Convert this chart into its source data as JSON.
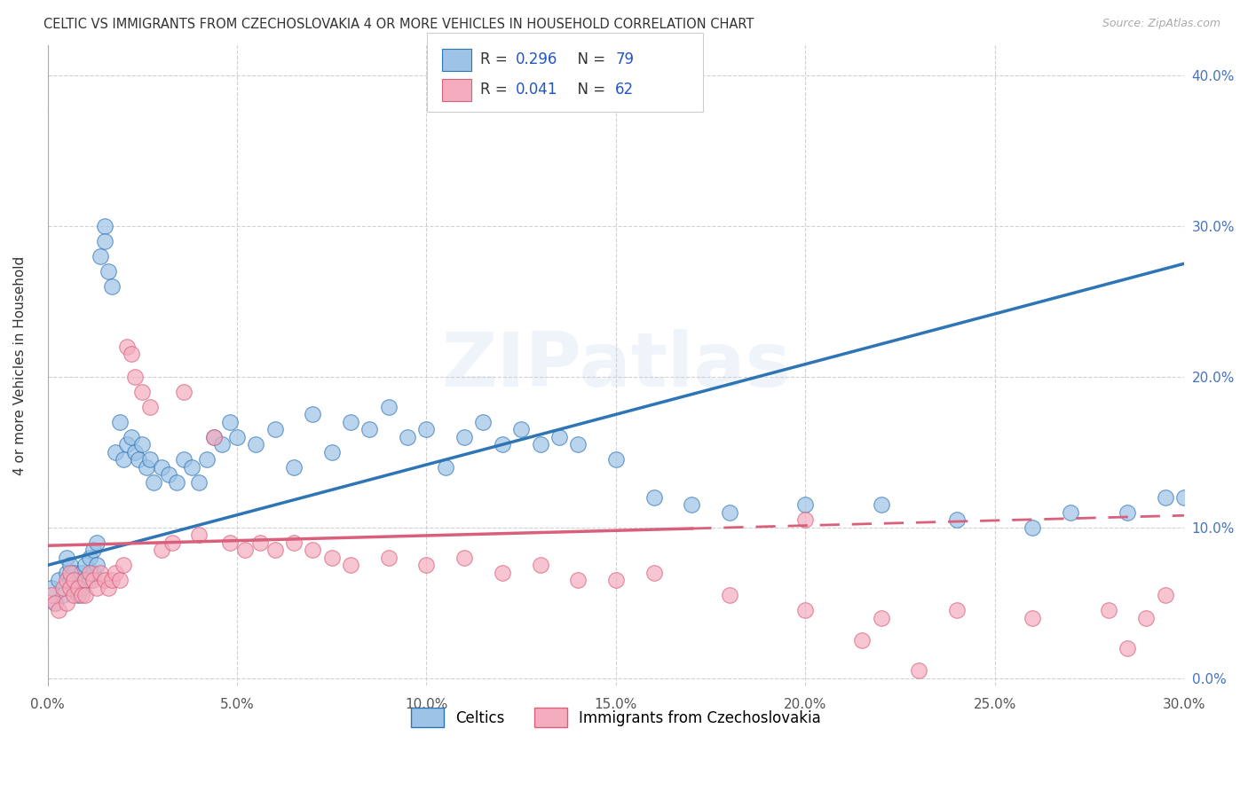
{
  "title": "CELTIC VS IMMIGRANTS FROM CZECHOSLOVAKIA 4 OR MORE VEHICLES IN HOUSEHOLD CORRELATION CHART",
  "source": "Source: ZipAtlas.com",
  "ylabel": "4 or more Vehicles in Household",
  "xlim": [
    0.0,
    0.3
  ],
  "ylim": [
    -0.005,
    0.42
  ],
  "xticks": [
    0.0,
    0.05,
    0.1,
    0.15,
    0.2,
    0.25,
    0.3
  ],
  "yticks": [
    0.0,
    0.1,
    0.2,
    0.3,
    0.4
  ],
  "xticklabels": [
    "0.0%",
    "5.0%",
    "10.0%",
    "15.0%",
    "20.0%",
    "25.0%",
    "30.0%"
  ],
  "yticklabels": [
    "0.0%",
    "10.0%",
    "20.0%",
    "30.0%",
    "40.0%"
  ],
  "legend_labels": [
    "Celtics",
    "Immigrants from Czechoslovakia"
  ],
  "series1_color": "#9DC3E6",
  "series2_color": "#F4ACBE",
  "trendline1_color": "#2E75B6",
  "trendline2_color": "#D95F7A",
  "watermark": "ZIPatlas",
  "trendline1_x0": 0.0,
  "trendline1_y0": 0.075,
  "trendline1_x1": 0.3,
  "trendline1_y1": 0.275,
  "trendline2_x0": 0.0,
  "trendline2_y0": 0.088,
  "trendline2_x1": 0.3,
  "trendline2_y1": 0.108,
  "trendline2_solid_end": 0.17,
  "celtics_x": [
    0.001,
    0.002,
    0.003,
    0.004,
    0.005,
    0.005,
    0.006,
    0.006,
    0.007,
    0.007,
    0.008,
    0.008,
    0.009,
    0.009,
    0.01,
    0.01,
    0.011,
    0.011,
    0.012,
    0.012,
    0.013,
    0.013,
    0.014,
    0.015,
    0.015,
    0.016,
    0.017,
    0.018,
    0.019,
    0.02,
    0.021,
    0.022,
    0.023,
    0.024,
    0.025,
    0.026,
    0.027,
    0.028,
    0.03,
    0.032,
    0.034,
    0.036,
    0.038,
    0.04,
    0.042,
    0.044,
    0.046,
    0.048,
    0.05,
    0.055,
    0.06,
    0.065,
    0.07,
    0.075,
    0.08,
    0.085,
    0.09,
    0.095,
    0.1,
    0.105,
    0.11,
    0.115,
    0.12,
    0.125,
    0.13,
    0.135,
    0.14,
    0.15,
    0.16,
    0.17,
    0.18,
    0.2,
    0.22,
    0.24,
    0.26,
    0.27,
    0.285,
    0.295,
    0.3
  ],
  "celtics_y": [
    0.06,
    0.05,
    0.065,
    0.055,
    0.07,
    0.08,
    0.065,
    0.075,
    0.06,
    0.07,
    0.055,
    0.065,
    0.06,
    0.07,
    0.065,
    0.075,
    0.065,
    0.08,
    0.07,
    0.085,
    0.075,
    0.09,
    0.28,
    0.3,
    0.29,
    0.27,
    0.26,
    0.15,
    0.17,
    0.145,
    0.155,
    0.16,
    0.15,
    0.145,
    0.155,
    0.14,
    0.145,
    0.13,
    0.14,
    0.135,
    0.13,
    0.145,
    0.14,
    0.13,
    0.145,
    0.16,
    0.155,
    0.17,
    0.16,
    0.155,
    0.165,
    0.14,
    0.175,
    0.15,
    0.17,
    0.165,
    0.18,
    0.16,
    0.165,
    0.14,
    0.16,
    0.17,
    0.155,
    0.165,
    0.155,
    0.16,
    0.155,
    0.145,
    0.12,
    0.115,
    0.11,
    0.115,
    0.115,
    0.105,
    0.1,
    0.11,
    0.11,
    0.12,
    0.12
  ],
  "czech_x": [
    0.001,
    0.002,
    0.003,
    0.004,
    0.005,
    0.005,
    0.006,
    0.006,
    0.007,
    0.007,
    0.008,
    0.009,
    0.01,
    0.01,
    0.011,
    0.012,
    0.013,
    0.014,
    0.015,
    0.016,
    0.017,
    0.018,
    0.019,
    0.02,
    0.021,
    0.022,
    0.023,
    0.025,
    0.027,
    0.03,
    0.033,
    0.036,
    0.04,
    0.044,
    0.048,
    0.052,
    0.056,
    0.06,
    0.065,
    0.07,
    0.075,
    0.08,
    0.09,
    0.1,
    0.11,
    0.12,
    0.13,
    0.14,
    0.15,
    0.16,
    0.18,
    0.2,
    0.22,
    0.24,
    0.26,
    0.28,
    0.285,
    0.29,
    0.295,
    0.2,
    0.215,
    0.23
  ],
  "czech_y": [
    0.055,
    0.05,
    0.045,
    0.06,
    0.05,
    0.065,
    0.06,
    0.07,
    0.055,
    0.065,
    0.06,
    0.055,
    0.065,
    0.055,
    0.07,
    0.065,
    0.06,
    0.07,
    0.065,
    0.06,
    0.065,
    0.07,
    0.065,
    0.075,
    0.22,
    0.215,
    0.2,
    0.19,
    0.18,
    0.085,
    0.09,
    0.19,
    0.095,
    0.16,
    0.09,
    0.085,
    0.09,
    0.085,
    0.09,
    0.085,
    0.08,
    0.075,
    0.08,
    0.075,
    0.08,
    0.07,
    0.075,
    0.065,
    0.065,
    0.07,
    0.055,
    0.045,
    0.04,
    0.045,
    0.04,
    0.045,
    0.02,
    0.04,
    0.055,
    0.105,
    0.025,
    0.005
  ]
}
